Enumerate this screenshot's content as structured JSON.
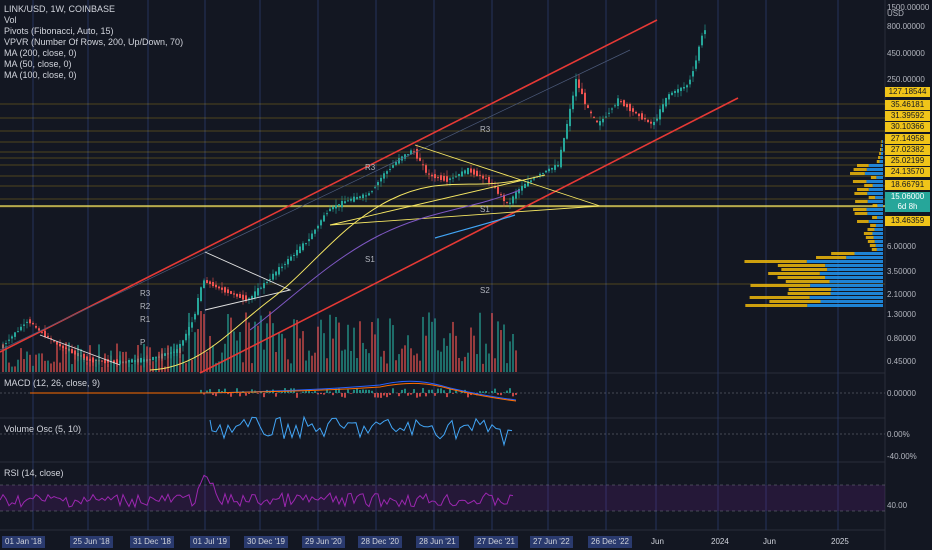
{
  "header": {
    "symbol": "LINK/USD, 1W, COINBASE",
    "indicators": [
      "Vol",
      "Pivots (Fibonacci, Auto, 15)",
      "VPVR (Number Of Rows, 200, Up/Down, 70)",
      "MA (200, close, 0)",
      "MA (50, close, 0)",
      "MA (100, close, 0)"
    ]
  },
  "panes": {
    "macd": "MACD (12, 26, close, 9)",
    "volume_osc": "Volume Osc (5, 10)",
    "rsi": "RSI (14, close)"
  },
  "price_axis": {
    "currency": "USD",
    "labels": [
      "1500.00000",
      "800.00000",
      "450.00000",
      "250.00000",
      "6.00000",
      "3.50000",
      "2.10000",
      "1.30000",
      "0.80000",
      "0.45000"
    ],
    "price_tags": [
      {
        "text": "127.18544",
        "color": "#f0c419"
      },
      {
        "text": "35.46181",
        "color": "#f0c419"
      },
      {
        "text": "31.39592",
        "color": "#f0c419"
      },
      {
        "text": "30.10366",
        "color": "#f0c419"
      },
      {
        "text": "27.14958",
        "color": "#f0c419"
      },
      {
        "text": "27.02382",
        "color": "#f0c419"
      },
      {
        "text": "25.02199",
        "color": "#f0c419"
      },
      {
        "text": "24.13570",
        "color": "#f0c419"
      },
      {
        "text": "18.66791",
        "color": "#f0c419"
      },
      {
        "text": "15.06000",
        "color": "#26a69a"
      },
      {
        "text": "6d 8h",
        "color": "#26a69a"
      },
      {
        "text": "13.46359",
        "color": "#f0c419"
      }
    ],
    "macd_labels": [
      "0.00000"
    ],
    "vosc_labels": [
      "0.00%",
      "-40.00%"
    ],
    "rsi_labels": [
      "40.00"
    ]
  },
  "time_axis": {
    "labels": [
      "01 Jan '18",
      "25 Jun '18",
      "31 Dec '18",
      "01 Jul '19",
      "30 Dec '19",
      "29 Jun '20",
      "28 Dec '20",
      "28 Jun '21",
      "27 Dec '21",
      "27 Jun '22",
      "26 Dec '22",
      "Jun",
      "2024",
      "Jun",
      "2025"
    ]
  },
  "pivot_labels": [
    "R3",
    "R2",
    "R1",
    "P",
    "S1",
    "S2"
  ],
  "colors": {
    "background": "#131722",
    "up": "#26a69a",
    "down": "#ef5350",
    "channel": "#e53935",
    "fib": "#f0c419",
    "ma_yellow": "#f5e663",
    "ma_purple": "#7e57c2",
    "ma_blue": "#42a5f5",
    "vpvr_up": "#2196f3",
    "vpvr_down": "#f0b90b",
    "rsi": "#9c27b0"
  }
}
